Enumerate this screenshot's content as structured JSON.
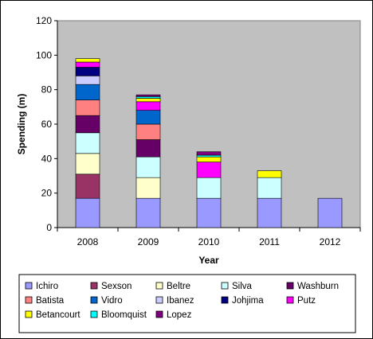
{
  "chart_data": {
    "type": "bar",
    "stacked": true,
    "xlabel": "Year",
    "ylabel": "Spending (m)",
    "ylim": [
      0,
      120
    ],
    "yticks": [
      0,
      20,
      40,
      60,
      80,
      100,
      120
    ],
    "categories": [
      "2008",
      "2009",
      "2010",
      "2011",
      "2012"
    ],
    "grid": false,
    "legend_position": "bottom",
    "plot_background": "#c0c0c0",
    "series": [
      {
        "name": "Ichiro",
        "color": "#9999ff",
        "values": [
          17,
          17,
          17,
          17,
          17
        ]
      },
      {
        "name": "Sexson",
        "color": "#993366",
        "values": [
          14,
          0,
          0,
          0,
          0
        ]
      },
      {
        "name": "Beltre",
        "color": "#ffffcc",
        "values": [
          12,
          12,
          0,
          0,
          0
        ]
      },
      {
        "name": "Silva",
        "color": "#ccffff",
        "values": [
          12,
          12,
          12,
          12,
          0
        ]
      },
      {
        "name": "Washburn",
        "color": "#660066",
        "values": [
          10,
          10,
          0,
          0,
          0
        ]
      },
      {
        "name": "Batista",
        "color": "#ff8080",
        "values": [
          9,
          9,
          0,
          0,
          0
        ]
      },
      {
        "name": "Vidro",
        "color": "#0066cc",
        "values": [
          9,
          8,
          0,
          0,
          0
        ]
      },
      {
        "name": "Ibanez",
        "color": "#ccccff",
        "values": [
          5,
          0,
          0,
          0,
          0
        ]
      },
      {
        "name": "Johjima",
        "color": "#000080",
        "values": [
          5,
          0,
          0,
          0,
          0
        ]
      },
      {
        "name": "Putz",
        "color": "#ff00ff",
        "values": [
          3,
          5,
          9,
          0,
          0
        ]
      },
      {
        "name": "Betancourt",
        "color": "#ffff00",
        "values": [
          2,
          2,
          3,
          4,
          0
        ]
      },
      {
        "name": "Bloomquist",
        "color": "#00ffff",
        "values": [
          0,
          1,
          1,
          0,
          0
        ]
      },
      {
        "name": "Lopez",
        "color": "#800080",
        "values": [
          0,
          1,
          2,
          0,
          0
        ]
      }
    ]
  }
}
